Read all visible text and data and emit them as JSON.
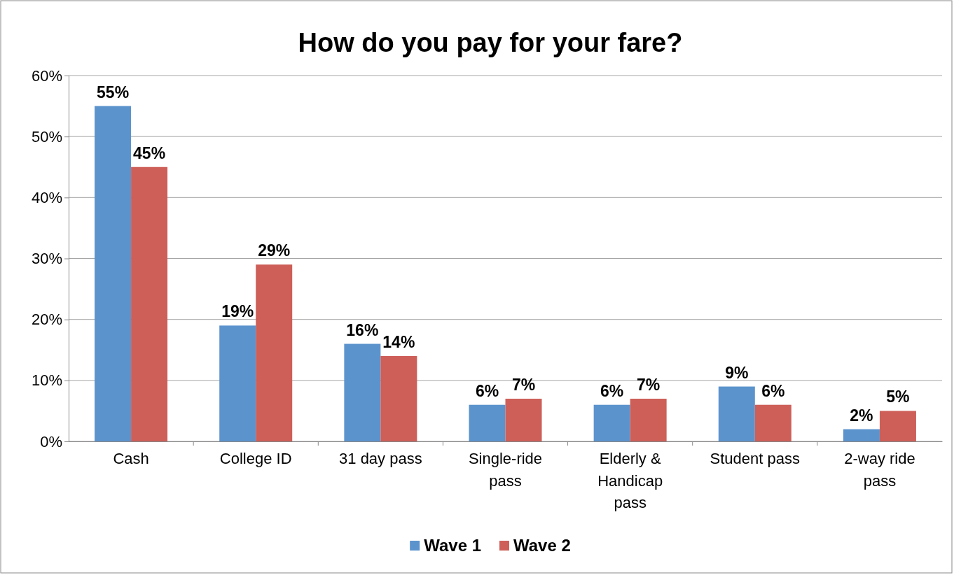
{
  "chart_data": {
    "type": "bar",
    "title": "How do you pay for your fare?",
    "categories": [
      "Cash",
      "College ID",
      "31 day pass",
      "Single-ride pass",
      "Elderly & Handicap pass",
      "Student pass",
      "2-way ride pass"
    ],
    "series": [
      {
        "name": "Wave 1",
        "color": "#5b93cd",
        "values": [
          55,
          19,
          16,
          6,
          6,
          9,
          2
        ],
        "value_labels": [
          "55%",
          "19%",
          "16%",
          "6%",
          "6%",
          "9%",
          "2%"
        ]
      },
      {
        "name": "Wave 2",
        "color": "#cd5f58",
        "values": [
          45,
          29,
          14,
          7,
          7,
          6,
          5
        ],
        "value_labels": [
          "45%",
          "29%",
          "14%",
          "7%",
          "7%",
          "6%",
          "5%"
        ]
      }
    ],
    "ylim": [
      0,
      60
    ],
    "yticks": [
      {
        "value": 0,
        "label": "0%"
      },
      {
        "value": 10,
        "label": "10%"
      },
      {
        "value": 20,
        "label": "20%"
      },
      {
        "value": 30,
        "label": "30%"
      },
      {
        "value": 40,
        "label": "40%"
      },
      {
        "value": 50,
        "label": "50%"
      },
      {
        "value": 60,
        "label": "60%"
      }
    ],
    "grid": "y",
    "legend": "bottom"
  }
}
